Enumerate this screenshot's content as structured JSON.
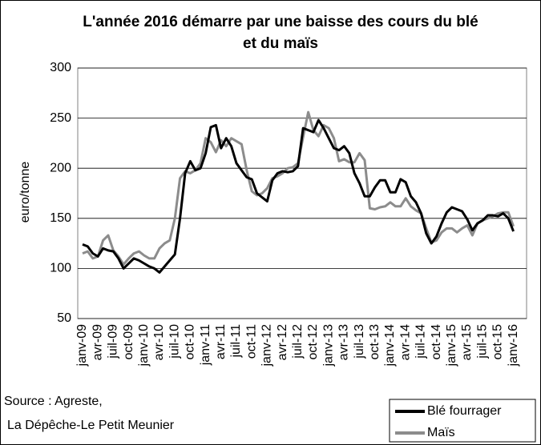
{
  "chart_data": {
    "type": "line",
    "title": "L'année 2016 démarre par une baisse des cours du blé et du maïs",
    "ylabel": "euro/tonne",
    "source": [
      "Source : Agreste,",
      "La Dépêche-Le Petit Meunier"
    ],
    "categories": [
      "janv-09",
      null,
      null,
      "avr-09",
      null,
      null,
      "juil-09",
      null,
      null,
      "oct-09",
      null,
      null,
      "janv-10",
      null,
      null,
      "avr-10",
      null,
      null,
      "juil-10",
      null,
      null,
      "oct-10",
      null,
      null,
      "janv-11",
      null,
      null,
      "avr-11",
      null,
      null,
      "juil-11",
      null,
      null,
      "oct-11",
      null,
      null,
      "janv-12",
      null,
      null,
      "avr-12",
      null,
      null,
      "juil-12",
      null,
      null,
      "oct-12",
      null,
      null,
      "janv-13",
      null,
      null,
      "avr-13",
      null,
      null,
      "juil-13",
      null,
      null,
      "oct-13",
      null,
      null,
      "janv-14",
      null,
      null,
      "avr-14",
      null,
      null,
      "juil-14",
      null,
      null,
      "oct-14",
      null,
      null,
      "janv-15",
      null,
      null,
      "avr-15",
      null,
      null,
      "juil-15",
      null,
      null,
      "oct-15",
      null,
      null,
      "janv-16"
    ],
    "series": [
      {
        "name": "Blé fourrager",
        "color": "#000000",
        "values": [
          124,
          122,
          115,
          112,
          120,
          118,
          117,
          110,
          100,
          105,
          110,
          108,
          105,
          102,
          100,
          96,
          102,
          108,
          114,
          150,
          195,
          207,
          198,
          200,
          215,
          241,
          243,
          220,
          230,
          222,
          205,
          198,
          191,
          189,
          175,
          171,
          167,
          188,
          195,
          197,
          196,
          197,
          202,
          240,
          238,
          236,
          248,
          240,
          230,
          220,
          218,
          222,
          215,
          195,
          185,
          172,
          172,
          181,
          188,
          188,
          176,
          176,
          189,
          186,
          172,
          166,
          155,
          135,
          125,
          132,
          145,
          156,
          161,
          159,
          157,
          149,
          138,
          145,
          148,
          153,
          153,
          152,
          155,
          150,
          137
        ]
      },
      {
        "name": "Maïs",
        "color": "#8c8c8c",
        "values": [
          115,
          117,
          110,
          112,
          128,
          133,
          118,
          112,
          104,
          110,
          115,
          117,
          113,
          110,
          110,
          120,
          125,
          128,
          150,
          190,
          197,
          195,
          198,
          205,
          230,
          226,
          216,
          228,
          222,
          230,
          227,
          224,
          198,
          177,
          173,
          175,
          180,
          190,
          192,
          195,
          200,
          201,
          205,
          231,
          256,
          238,
          232,
          243,
          240,
          230,
          207,
          209,
          206,
          206,
          215,
          208,
          160,
          159,
          161,
          162,
          166,
          162,
          162,
          170,
          162,
          158,
          155,
          140,
          126,
          128,
          136,
          140,
          140,
          136,
          140,
          143,
          133,
          145,
          148,
          150,
          152,
          155,
          156,
          156,
          142
        ]
      }
    ],
    "ylim": [
      50,
      300
    ],
    "yticks": [
      50,
      100,
      150,
      200,
      250,
      300
    ],
    "grid": true
  }
}
